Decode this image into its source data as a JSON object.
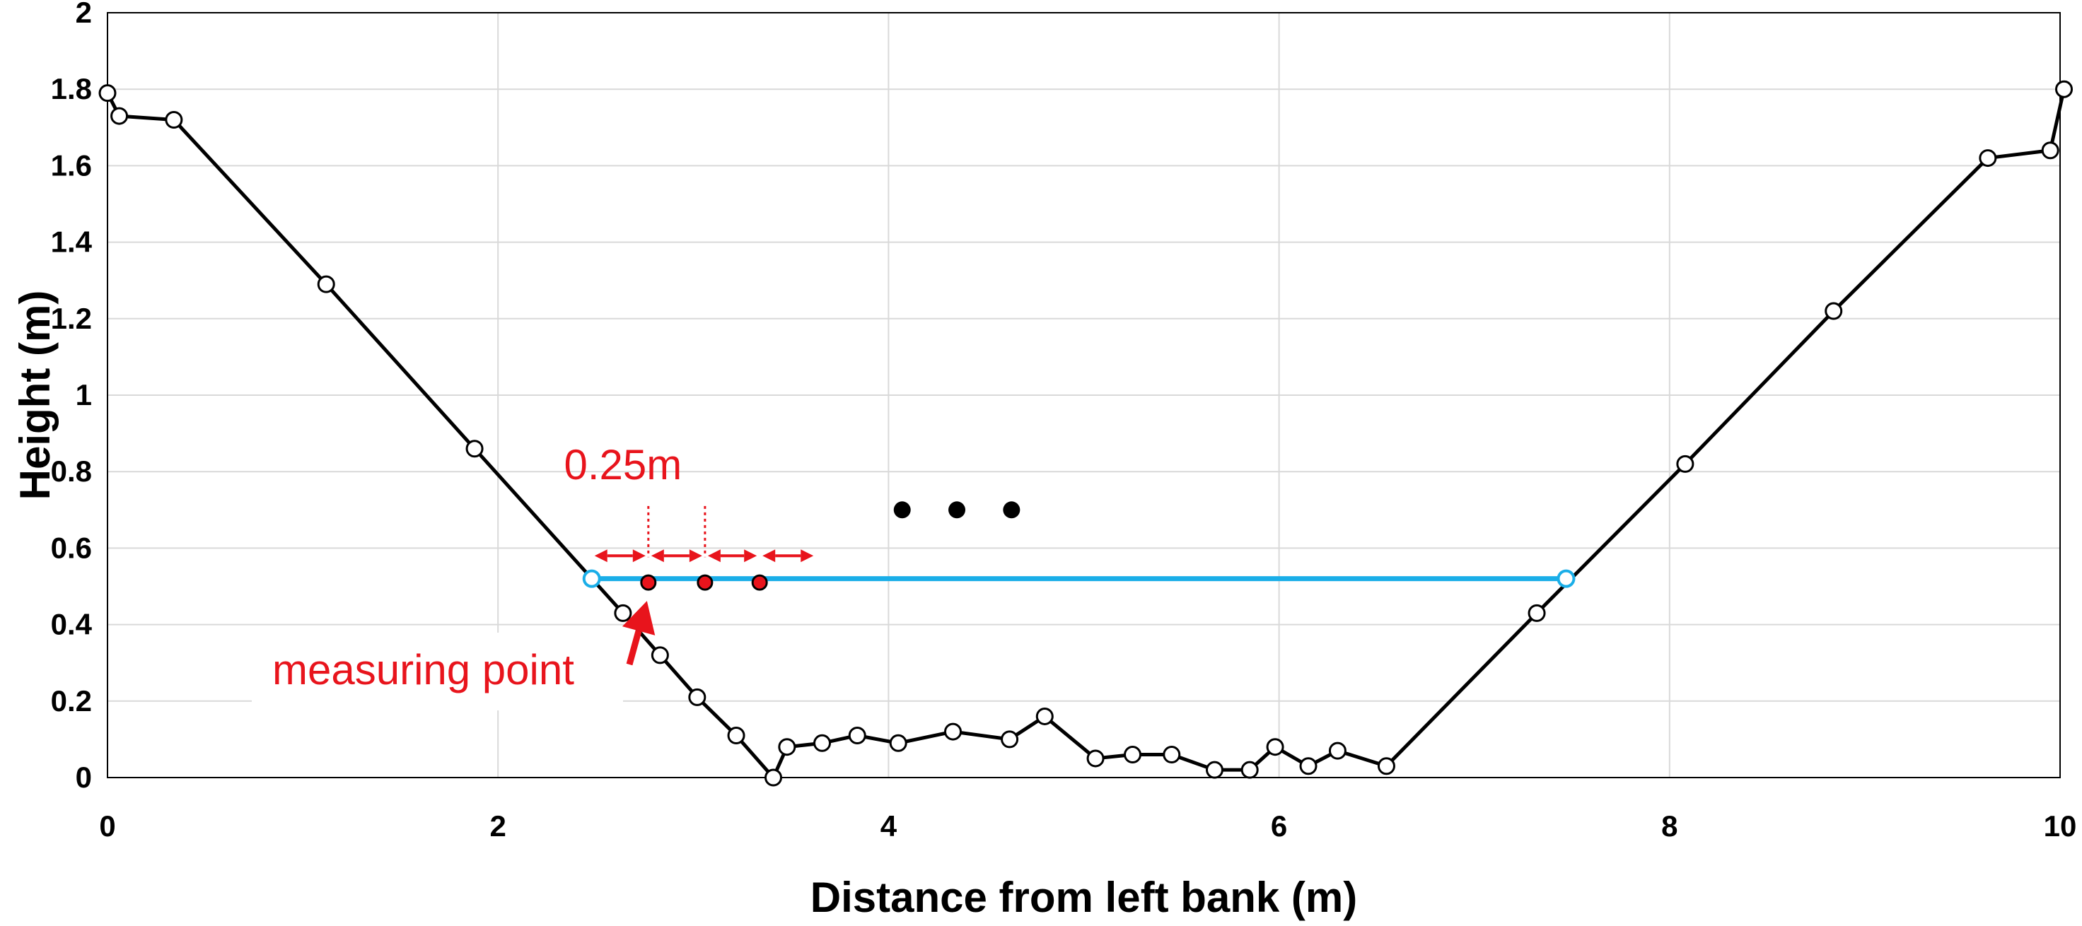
{
  "chart_data": {
    "type": "line",
    "title": "",
    "xlabel": "Distance from left bank (m)",
    "ylabel": "Height (m)",
    "xlim": [
      0,
      10
    ],
    "ylim": [
      0,
      2
    ],
    "xticks": [
      0,
      2,
      4,
      6,
      8,
      10
    ],
    "yticks": [
      0,
      0.2,
      0.4,
      0.6,
      0.8,
      1,
      1.2,
      1.4,
      1.6,
      1.8,
      2
    ],
    "xtick_labels": [
      "0",
      "2",
      "4",
      "6",
      "8",
      "10"
    ],
    "ytick_labels": [
      "0",
      "0.2",
      "0.4",
      "0.6",
      "0.8",
      "1",
      "1.2",
      "1.4",
      "1.6",
      "1.8",
      "2"
    ],
    "grid": true,
    "series": [
      {
        "color": "#000000",
        "marker": "open-circle",
        "x": [
          0,
          0.06,
          0.34,
          1.12,
          1.88,
          2.64,
          2.83,
          3.02,
          3.22,
          3.41,
          3.48,
          3.66,
          3.84,
          4.05,
          4.33,
          4.62,
          4.8,
          5.06,
          5.25,
          5.45,
          5.67,
          5.85,
          5.98,
          6.15,
          6.3,
          6.55,
          7.32,
          8.08,
          8.84,
          9.63,
          9.95,
          10.02
        ],
        "y": [
          1.79,
          1.73,
          1.72,
          1.29,
          0.86,
          0.43,
          0.32,
          0.21,
          0.11,
          0.0,
          0.08,
          0.09,
          0.11,
          0.09,
          0.12,
          0.1,
          0.16,
          0.05,
          0.06,
          0.06,
          0.02,
          0.02,
          0.08,
          0.03,
          0.07,
          0.03,
          0.43,
          0.82,
          1.22,
          1.62,
          1.64,
          1.8
        ]
      }
    ],
    "water_surface": {
      "color": "#1aaee8",
      "y": 0.52,
      "x_start": 2.48,
      "x_end": 7.47
    },
    "measuring_points": {
      "color": "#e8141c",
      "x": [
        2.77,
        3.06,
        3.34
      ],
      "y": 0.51
    },
    "ellipsis_dots": {
      "color": "#000000",
      "x": [
        4.07,
        4.35,
        4.63
      ],
      "y": 0.7
    },
    "spacing_arrows": {
      "color": "#e8141c",
      "x": [
        2.48,
        2.77,
        3.06,
        3.34,
        3.63
      ],
      "y": 0.58
    },
    "annotations": {
      "spacing_label": "0.25m",
      "measuring_label": "measuring point",
      "color": "#e8141c"
    }
  }
}
